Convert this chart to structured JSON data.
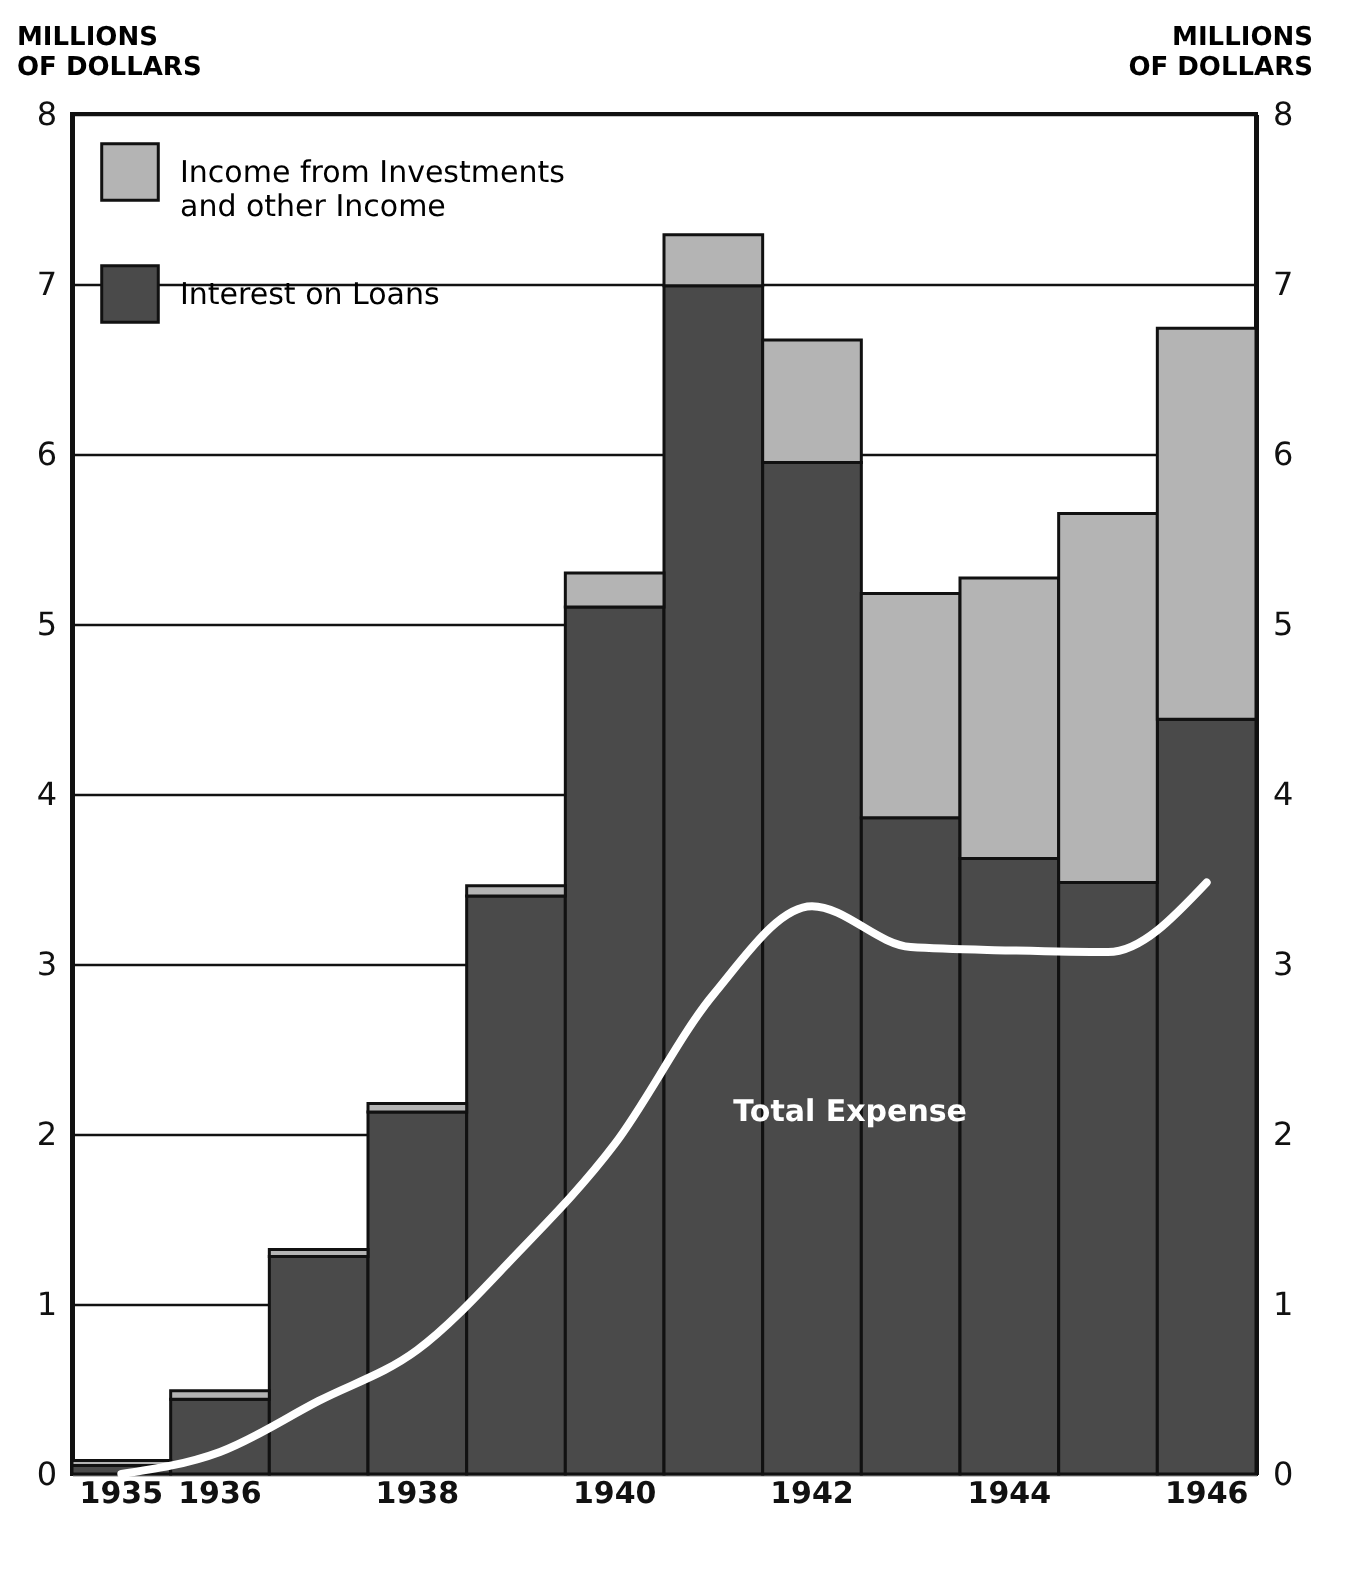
{
  "chart_data": {
    "type": "bar",
    "stacked": true,
    "ylabel": "MILLIONS OF DOLLARS",
    "y2label": "MILLIONS OF DOLLARS",
    "categories": [
      "1935",
      "1936",
      null,
      "1938",
      null,
      "1940",
      null,
      "1942",
      null,
      "1944",
      null,
      "1946"
    ],
    "series": [
      {
        "name": "Interest on Loans",
        "color": "#4a4a4a",
        "values": [
          0.05,
          0.44,
          1.28,
          2.13,
          3.4,
          5.1,
          6.99,
          5.95,
          3.86,
          3.62,
          3.48,
          4.44
        ]
      },
      {
        "name": "Income from Investments and other Income",
        "color": "#b4b4b4",
        "values": [
          0.03,
          0.05,
          0.04,
          0.05,
          0.06,
          0.2,
          0.3,
          0.72,
          1.32,
          1.65,
          2.17,
          2.3
        ]
      },
      {
        "name": "Total Expense",
        "type": "line",
        "color": "#ffffff",
        "values": [
          0,
          0.13,
          0.43,
          0.73,
          1.29,
          1.94,
          2.82,
          3.34,
          3.1,
          3.08,
          3.07,
          3.48
        ]
      }
    ],
    "ylim": [
      0,
      8
    ],
    "yticks": [
      0,
      1,
      2,
      3,
      4,
      5,
      6,
      7,
      8
    ],
    "y2lim": [
      0,
      8
    ],
    "y2ticks": [
      0,
      1,
      2,
      3,
      4,
      5,
      6,
      7,
      8
    ],
    "grid": "y",
    "legend": "top left"
  }
}
